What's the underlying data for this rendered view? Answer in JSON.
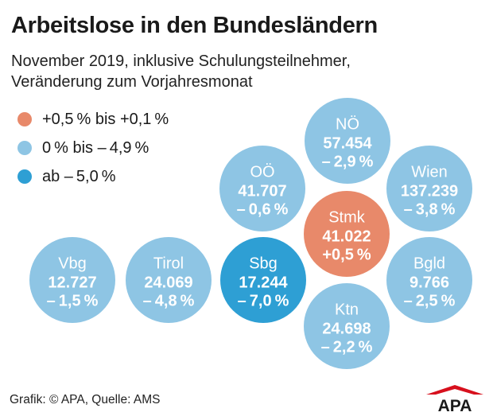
{
  "header": {
    "title": "Arbeitslose in den Bundesländern",
    "subtitle_line1": "November 2019, inklusive Schulungsteilnehmer,",
    "subtitle_line2": "Veränderung zum Vorjahresmonat"
  },
  "legend": [
    {
      "label": "+0,5 % bis +0,1 %",
      "color": "#e8896a"
    },
    {
      "label": "0 % bis – 4,9 %",
      "color": "#8ec5e4"
    },
    {
      "label": "ab – 5,0 %",
      "color": "#2e9fd4"
    }
  ],
  "chart_data": {
    "type": "bubble",
    "items": [
      {
        "name": "NÖ",
        "value": 57454,
        "value_label": "57.454",
        "change": -2.9,
        "change_label": "– 2,9 %",
        "color": "#8ec5e4"
      },
      {
        "name": "OÖ",
        "value": 41707,
        "value_label": "41.707",
        "change": -0.6,
        "change_label": "– 0,6 %",
        "color": "#8ec5e4"
      },
      {
        "name": "Wien",
        "value": 137239,
        "value_label": "137.239",
        "change": -3.8,
        "change_label": "– 3,8 %",
        "color": "#8ec5e4"
      },
      {
        "name": "Stmk",
        "value": 41022,
        "value_label": "41.022",
        "change": 0.5,
        "change_label": "+0,5 %",
        "color": "#e8896a"
      },
      {
        "name": "Vbg",
        "value": 12727,
        "value_label": "12.727",
        "change": -1.5,
        "change_label": "– 1,5 %",
        "color": "#8ec5e4"
      },
      {
        "name": "Tirol",
        "value": 24069,
        "value_label": "24.069",
        "change": -4.8,
        "change_label": "– 4,8 %",
        "color": "#8ec5e4"
      },
      {
        "name": "Sbg",
        "value": 17244,
        "value_label": "17.244",
        "change": -7.0,
        "change_label": "– 7,0 %",
        "color": "#2e9fd4"
      },
      {
        "name": "Bgld",
        "value": 9766,
        "value_label": "9.766",
        "change": -2.5,
        "change_label": "– 2,5 %",
        "color": "#8ec5e4"
      },
      {
        "name": "Ktn",
        "value": 24698,
        "value_label": "24.698",
        "change": -2.2,
        "change_label": "– 2,2 %",
        "color": "#8ec5e4"
      }
    ]
  },
  "footer": {
    "source": "Grafik: © APA, Quelle: AMS"
  },
  "logo": {
    "text": "APA",
    "color": "#d7101d"
  }
}
